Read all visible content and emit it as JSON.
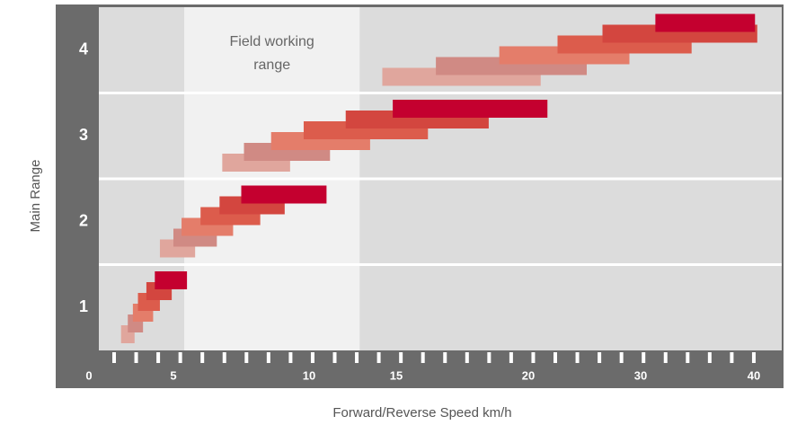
{
  "chart_data": {
    "type": "range_bar",
    "xlabel": "Forward/Reverse Speed km/h",
    "ylabel": "Main Range",
    "annotation": {
      "text": [
        "Field working",
        "range"
      ],
      "xrange": [
        5.4,
        12.9
      ]
    },
    "categories": [
      "1",
      "2",
      "3",
      "4"
    ],
    "xticks": [
      0,
      5,
      10,
      15,
      20,
      30,
      40
    ],
    "xlim": [
      0,
      40
    ],
    "series": [
      {
        "color": "#e0a69d",
        "values": [
          [
            1.9,
            2.7
          ],
          [
            4.2,
            5.8
          ],
          [
            6.8,
            9.3
          ],
          [
            14.2,
            21.1
          ]
        ]
      },
      {
        "color": "#d08a84",
        "values": [
          [
            2.3,
            3.2
          ],
          [
            5.0,
            6.6
          ],
          [
            7.6,
            11.2
          ],
          [
            16.5,
            25.2
          ]
        ]
      },
      {
        "color": "#e47d6a",
        "values": [
          [
            2.6,
            3.8
          ],
          [
            5.3,
            7.2
          ],
          [
            8.6,
            13.5
          ],
          [
            18.9,
            29.0
          ]
        ]
      },
      {
        "color": "#dc5c4c",
        "values": [
          [
            2.9,
            4.2
          ],
          [
            6.0,
            8.2
          ],
          [
            9.8,
            16.2
          ],
          [
            22.6,
            34.5
          ]
        ]
      },
      {
        "color": "#d3463f",
        "values": [
          [
            3.4,
            4.9
          ],
          [
            6.7,
            9.1
          ],
          [
            12.1,
            18.5
          ],
          [
            26.6,
            40.3
          ]
        ]
      },
      {
        "color": "#c4002f",
        "values": [
          [
            3.9,
            5.5
          ],
          [
            7.5,
            11.0
          ],
          [
            14.8,
            21.7
          ],
          [
            31.3,
            40.1
          ]
        ]
      }
    ]
  }
}
